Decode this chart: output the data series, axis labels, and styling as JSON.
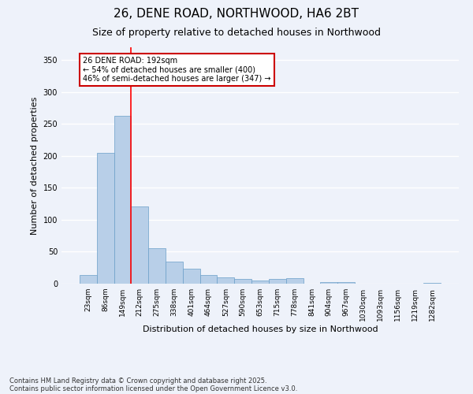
{
  "title_line1": "26, DENE ROAD, NORTHWOOD, HA6 2BT",
  "title_line2": "Size of property relative to detached houses in Northwood",
  "xlabel": "Distribution of detached houses by size in Northwood",
  "ylabel": "Number of detached properties",
  "bar_color": "#b8cfe8",
  "bar_edge_color": "#6a9ec8",
  "background_color": "#eef2fa",
  "grid_color": "#ffffff",
  "categories": [
    "23sqm",
    "86sqm",
    "149sqm",
    "212sqm",
    "275sqm",
    "338sqm",
    "401sqm",
    "464sqm",
    "527sqm",
    "590sqm",
    "653sqm",
    "715sqm",
    "778sqm",
    "841sqm",
    "904sqm",
    "967sqm",
    "1030sqm",
    "1093sqm",
    "1156sqm",
    "1219sqm",
    "1282sqm"
  ],
  "values": [
    13,
    205,
    263,
    121,
    55,
    35,
    23,
    13,
    10,
    8,
    5,
    8,
    9,
    0,
    3,
    3,
    0,
    0,
    0,
    0,
    1
  ],
  "ylim": [
    0,
    370
  ],
  "yticks": [
    0,
    50,
    100,
    150,
    200,
    250,
    300,
    350
  ],
  "red_line_index": 2.5,
  "annotation_text": "26 DENE ROAD: 192sqm\n← 54% of detached houses are smaller (400)\n46% of semi-detached houses are larger (347) →",
  "annotation_box_color": "#ffffff",
  "annotation_box_edgecolor": "#cc0000",
  "footnote_line1": "Contains HM Land Registry data © Crown copyright and database right 2025.",
  "footnote_line2": "Contains public sector information licensed under the Open Government Licence v3.0.",
  "title_fontsize": 11,
  "subtitle_fontsize": 9,
  "tick_fontsize": 6.5,
  "ylabel_fontsize": 8,
  "xlabel_fontsize": 8,
  "footnote_fontsize": 6,
  "annot_fontsize": 7
}
